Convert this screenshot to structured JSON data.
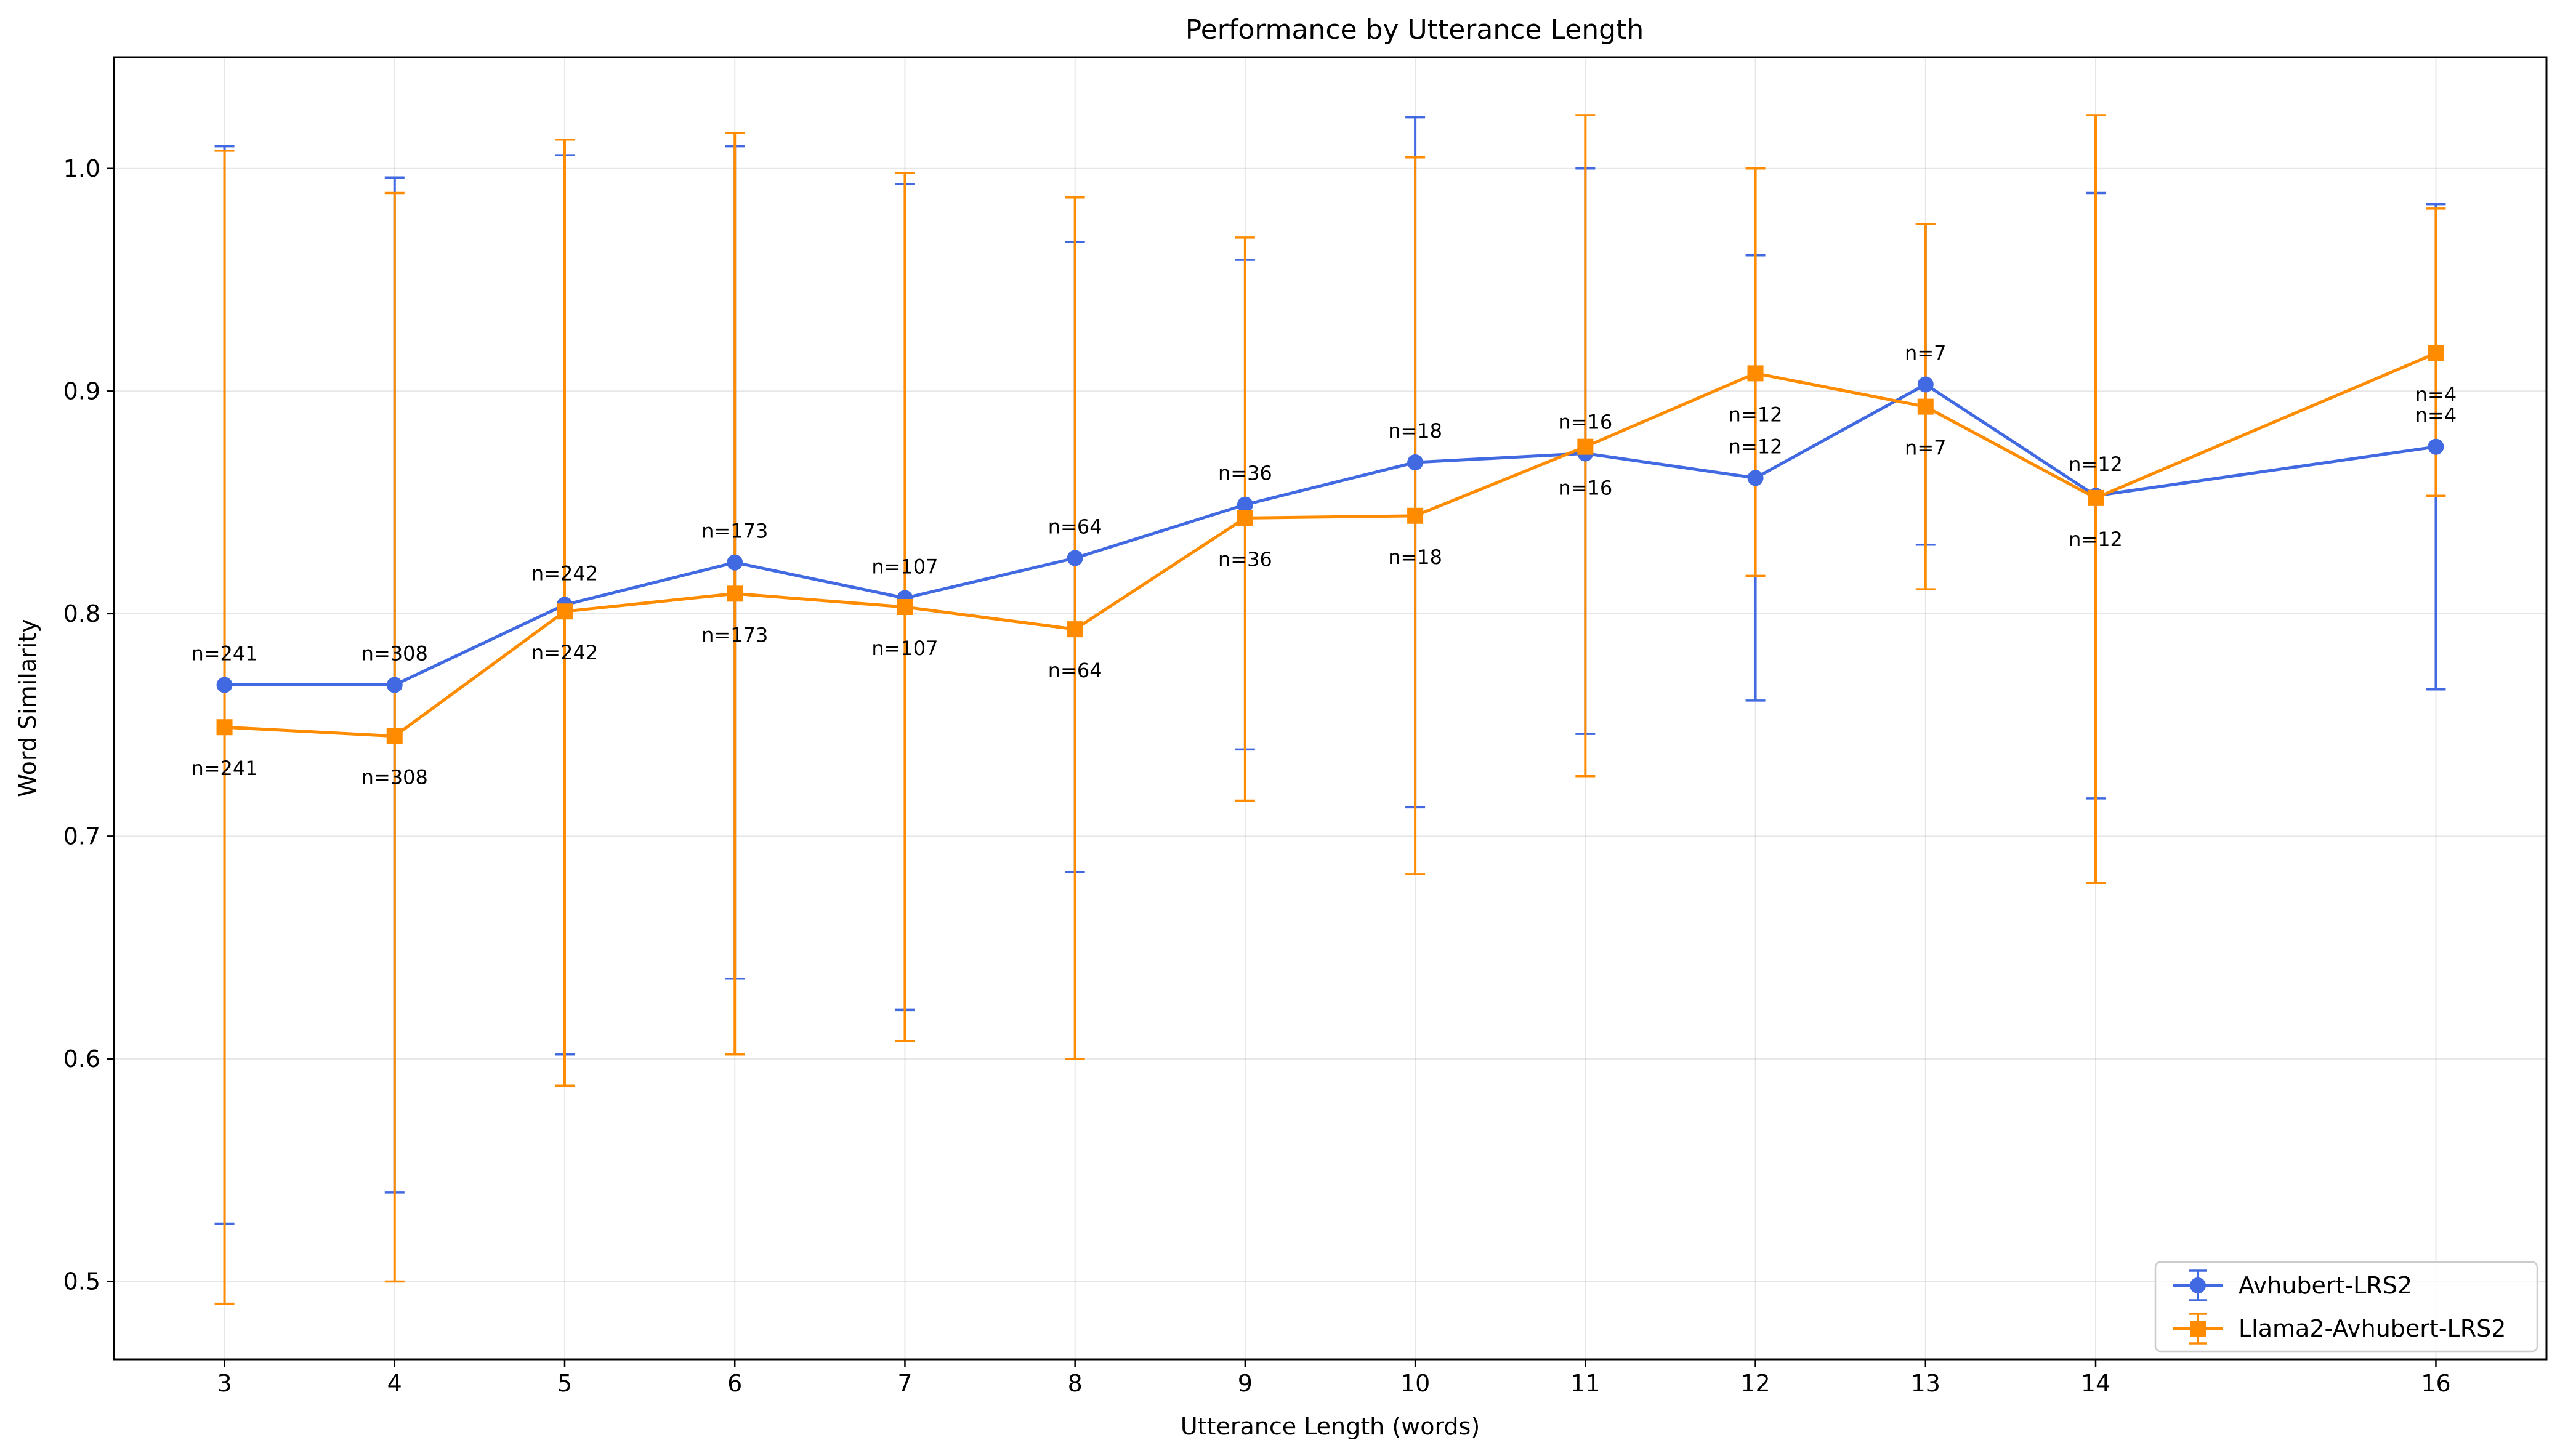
{
  "chart_data": {
    "type": "line",
    "title": "Performance by Utterance Length",
    "xlabel": "Utterance Length (words)",
    "ylabel": "Word Similarity",
    "xlim": [
      2.35,
      16.65
    ],
    "ylim": [
      0.465,
      1.05
    ],
    "x_ticks": [
      3,
      4,
      5,
      6,
      7,
      8,
      9,
      10,
      11,
      12,
      13,
      14,
      16
    ],
    "y_ticks": [
      0.5,
      0.6,
      0.7,
      0.8,
      0.9,
      1.0
    ],
    "y_tick_labels": [
      "0.5",
      "0.6",
      "0.7",
      "0.8",
      "0.9",
      "1.0"
    ],
    "grid": true,
    "legend_position": "lower-right",
    "annotation_prefix": "n=",
    "series": [
      {
        "name": "Avhubert-LRS2",
        "color": "#4169E1",
        "marker": "circle",
        "x": [
          3,
          4,
          5,
          6,
          7,
          8,
          9,
          10,
          11,
          12,
          13,
          14,
          16
        ],
        "y": [
          0.768,
          0.768,
          0.804,
          0.823,
          0.807,
          0.825,
          0.849,
          0.868,
          0.872,
          0.861,
          0.903,
          0.853,
          0.875
        ],
        "yerr_low": [
          0.526,
          0.54,
          0.602,
          0.636,
          0.622,
          0.684,
          0.739,
          0.713,
          0.746,
          0.761,
          0.831,
          0.717,
          0.766
        ],
        "yerr_high": [
          1.01,
          0.996,
          1.006,
          1.01,
          0.993,
          0.967,
          0.959,
          1.023,
          1.0,
          0.961,
          0.975,
          0.989,
          0.984
        ],
        "n": [
          241,
          308,
          242,
          173,
          107,
          64,
          36,
          18,
          16,
          12,
          7,
          12,
          4
        ]
      },
      {
        "name": "Llama2-Avhubert-LRS2",
        "color": "#FF8C00",
        "marker": "square",
        "x": [
          3,
          4,
          5,
          6,
          7,
          8,
          9,
          10,
          11,
          12,
          13,
          14,
          16
        ],
        "y": [
          0.749,
          0.745,
          0.801,
          0.809,
          0.803,
          0.793,
          0.843,
          0.844,
          0.875,
          0.908,
          0.893,
          0.852,
          0.917
        ],
        "yerr_low": [
          0.49,
          0.5,
          0.588,
          0.602,
          0.608,
          0.6,
          0.716,
          0.683,
          0.727,
          0.817,
          0.811,
          0.679,
          0.853
        ],
        "yerr_high": [
          1.008,
          0.989,
          1.013,
          1.016,
          0.998,
          0.987,
          0.969,
          1.005,
          1.024,
          1.0,
          0.975,
          1.024,
          0.982
        ],
        "n": [
          241,
          308,
          242,
          173,
          107,
          64,
          36,
          18,
          16,
          12,
          7,
          12,
          4
        ]
      }
    ]
  }
}
